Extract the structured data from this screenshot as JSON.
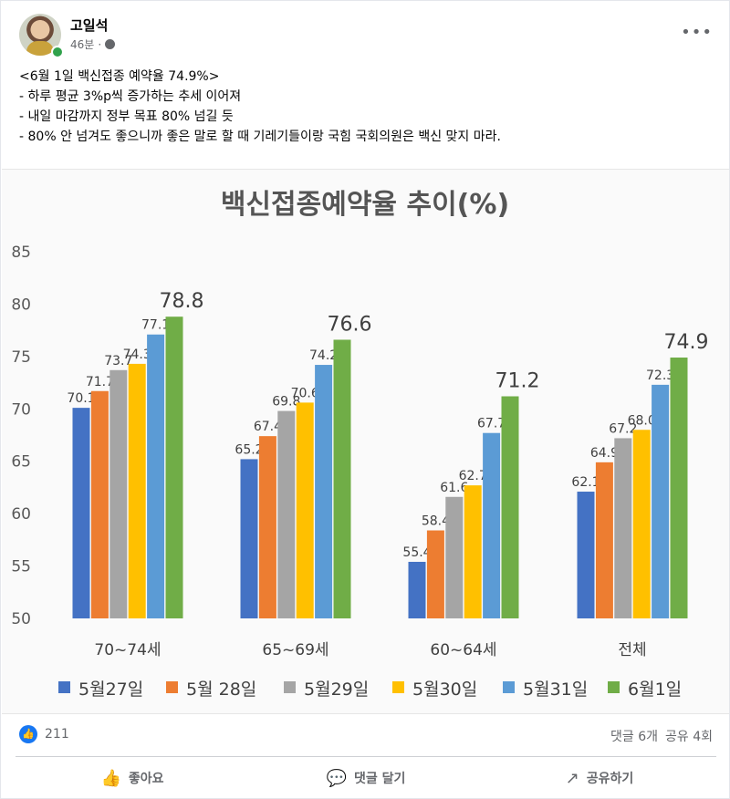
{
  "post": {
    "author": "고일석",
    "time": "46분",
    "separator": "·",
    "more_icon": "more-horizontal-icon",
    "lines": [
      "<6월 1일 백신접종 예약율 74.9%>",
      "- 하루 평균 3%p씩 증가하는 추세 이어져",
      "- 내일 마감까지 정부 목표 80% 넘길 듯",
      "- 80% 안 넘겨도 좋으니까 좋은 말로 할 때 기레기들이랑 국힘 국회의원은 백신 맞지 마라."
    ]
  },
  "chart_data": {
    "type": "bar",
    "title": "백신접종예약율 추이(%)",
    "categories": [
      "70~74세",
      "65~69세",
      "60~64세",
      "전체"
    ],
    "ylim": [
      50,
      85
    ],
    "yticks": [
      50,
      55,
      60,
      65,
      70,
      75,
      80,
      85
    ],
    "grid": false,
    "legend": "bottom",
    "series": [
      {
        "name": "5월27일",
        "color": "#4472c4",
        "values": [
          70.1,
          65.2,
          55.4,
          62.1
        ]
      },
      {
        "name": "5월 28일",
        "color": "#ed7d31",
        "values": [
          71.7,
          67.4,
          58.4,
          64.9
        ]
      },
      {
        "name": "5월29일",
        "color": "#a5a5a5",
        "values": [
          73.7,
          69.8,
          61.6,
          67.2
        ]
      },
      {
        "name": "5월30일",
        "color": "#ffc000",
        "values": [
          74.3,
          70.6,
          62.7,
          68.0
        ]
      },
      {
        "name": "5월31일",
        "color": "#5b9bd5",
        "values": [
          77.1,
          74.2,
          67.7,
          72.3
        ]
      },
      {
        "name": "6월1일",
        "color": "#70ad47",
        "values": [
          78.8,
          76.6,
          71.2,
          74.9
        ]
      }
    ],
    "labels": [
      [
        "70.1",
        "65.2",
        "55.4",
        "62.1"
      ],
      [
        "71.7",
        "67.4",
        "58.4",
        "64.9"
      ],
      [
        "73.7",
        "69.8",
        "61.6",
        "67.2"
      ],
      [
        "74.3",
        "70.6",
        "62.7",
        "68.0"
      ],
      [
        "77.1",
        "74.2",
        "67.7",
        "72.3"
      ],
      [
        "78.8",
        "76.6",
        "71.2",
        "74.9"
      ]
    ]
  },
  "stats": {
    "like_count": "211",
    "comments": "댓글 6개",
    "shares": "공유 4회"
  },
  "actions": {
    "like": "좋아요",
    "comment": "댓글 달기",
    "share": "공유하기"
  }
}
